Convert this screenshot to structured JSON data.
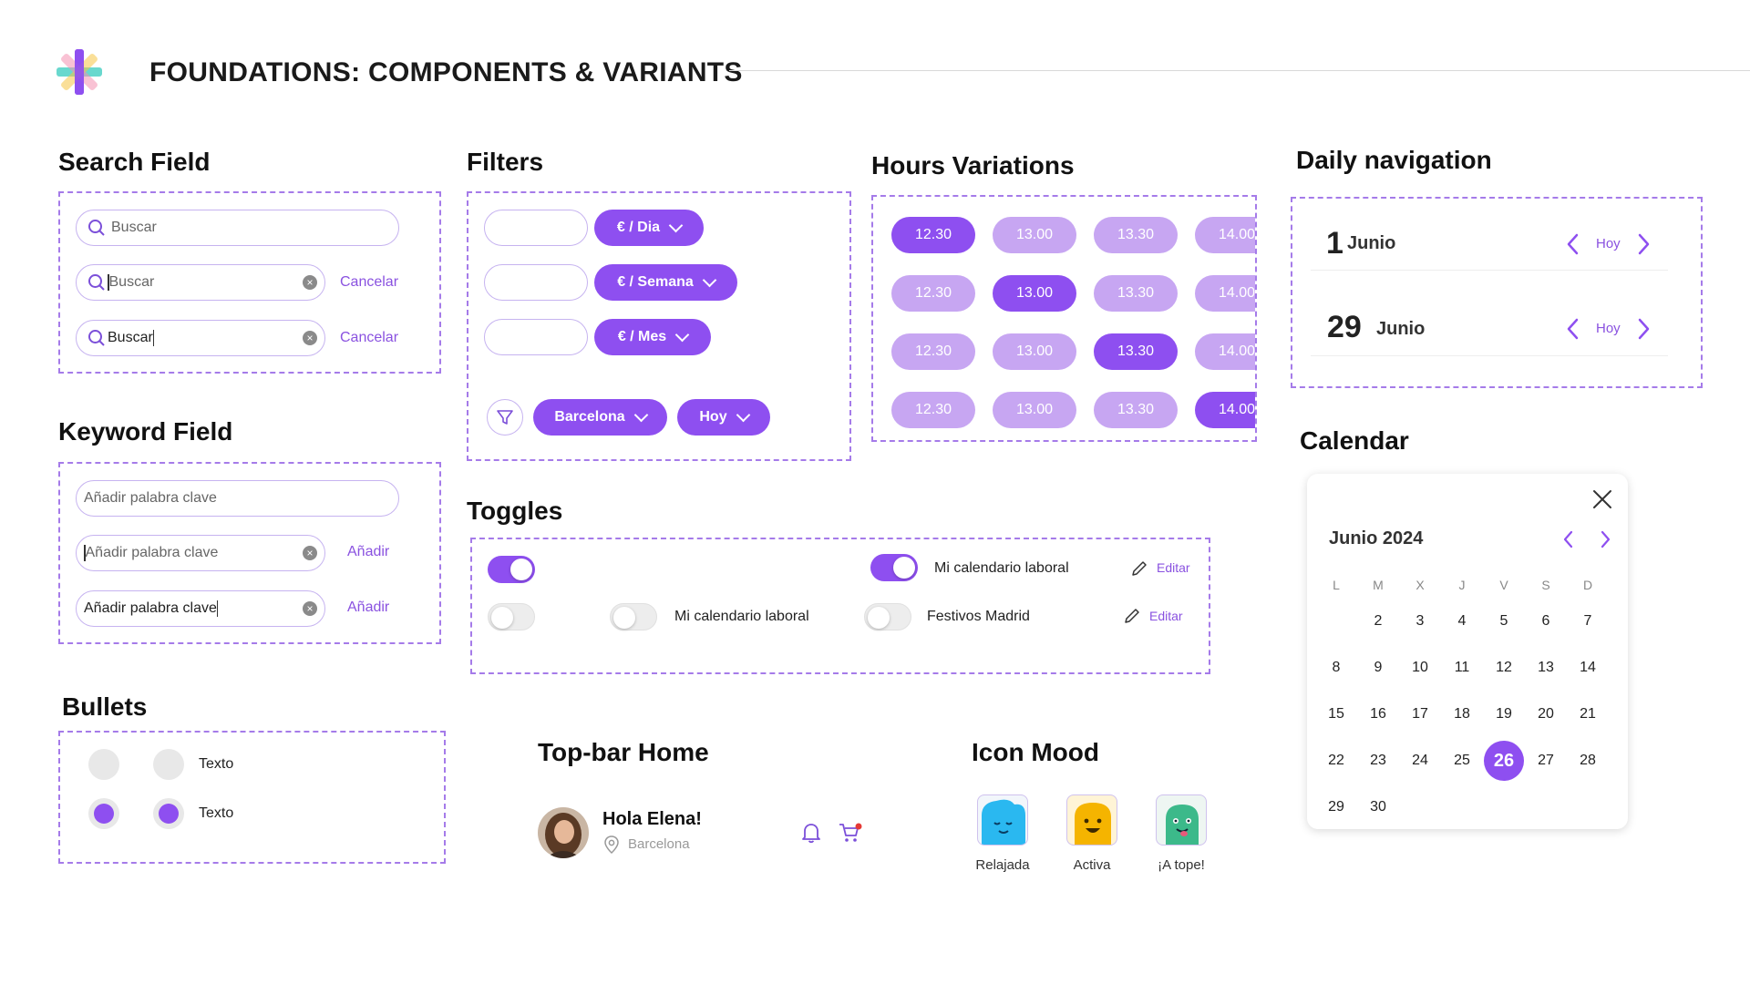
{
  "page": {
    "title": "FOUNDATIONS: COMPONENTS & VARIANTS"
  },
  "colors": {
    "accent": "#8e4ff0",
    "accent_light": "#c7a6f2",
    "dash_border": "#a57be9",
    "link": "#8a52e0"
  },
  "search": {
    "title": "Search Field",
    "placeholder": "Buscar",
    "value_focus": "Buscar",
    "value_typed": "Buscar",
    "cancel_label": "Cancelar"
  },
  "keyword": {
    "title": "Keyword Field",
    "placeholder": "Añadir palabra clave",
    "value_focus": "Añadir palabra clave",
    "value_typed": "Añadir palabra clave",
    "add_label": "Añadir"
  },
  "bullets": {
    "title": "Bullets",
    "label": "Texto"
  },
  "filters": {
    "title": "Filters",
    "price_options": [
      "€ / Dia",
      "€ / Semana",
      "€ / Mes"
    ],
    "city": "Barcelona",
    "date": "Hoy"
  },
  "hours": {
    "title": "Hours Variations",
    "values": [
      "12.30",
      "13.00",
      "13.30",
      "14.00"
    ]
  },
  "toggles": {
    "title": "Toggles",
    "labels": [
      "Mi calendario laboral",
      "Festivos Madrid"
    ],
    "edit_label": "Editar"
  },
  "topbar": {
    "title": "Top-bar Home",
    "greeting": "Hola Elena!",
    "location": "Barcelona"
  },
  "mood": {
    "title": "Icon Mood",
    "items": [
      {
        "label": "Relajada",
        "color": "#2ab8f0",
        "icon": "relaxed-face-icon"
      },
      {
        "label": "Activa",
        "color": "#f5b400",
        "icon": "active-face-icon"
      },
      {
        "label": "¡A tope!",
        "color": "#3cb98a",
        "icon": "excited-face-icon"
      }
    ]
  },
  "daily": {
    "title": "Daily navigation",
    "rows": [
      {
        "day": "1",
        "month": "Junio",
        "today": "Hoy"
      },
      {
        "day": "29",
        "month": "Junio",
        "today": "Hoy"
      }
    ]
  },
  "calendar": {
    "title": "Calendar",
    "month_label": "Junio 2024",
    "weekdays": [
      "L",
      "M",
      "X",
      "J",
      "V",
      "S",
      "D"
    ],
    "days": [
      "2",
      "3",
      "4",
      "5",
      "6",
      "7",
      "8",
      "9",
      "10",
      "11",
      "12",
      "13",
      "14",
      "15",
      "16",
      "17",
      "18",
      "19",
      "20",
      "21",
      "22",
      "23",
      "24",
      "25",
      "26",
      "27",
      "28",
      "29",
      "30"
    ],
    "selected": "26"
  }
}
